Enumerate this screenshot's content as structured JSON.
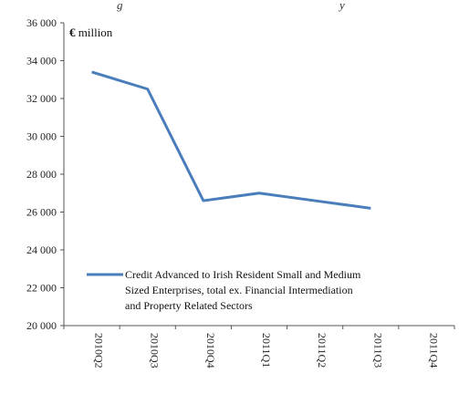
{
  "header_text": "g",
  "header_text_2": "y",
  "chart_data": {
    "type": "line",
    "unit_label": "€ million",
    "categories": [
      "2010Q2",
      "2010Q3",
      "2010Q4",
      "2011Q1",
      "2011Q2",
      "2011Q3",
      "2011Q4"
    ],
    "series": [
      {
        "name": "Credit Advanced to Irish Resident Small and Medium Sized Enterprises, total ex. Financial Intermediation and Property Related Sectors",
        "values": [
          33400,
          32500,
          26600,
          27000,
          26600,
          26200,
          null
        ],
        "color": "#4a7ebb"
      }
    ],
    "ylim": [
      20000,
      36000
    ],
    "yticks": [
      20000,
      22000,
      24000,
      26000,
      28000,
      30000,
      32000,
      34000,
      36000
    ],
    "ytick_labels": [
      "20 000",
      "22 000",
      "24 000",
      "26 000",
      "28 000",
      "30 000",
      "32 000",
      "34 000",
      "36 000"
    ],
    "legend_lines": [
      "Credit Advanced to Irish Resident Small and Medium",
      "Sized Enterprises, total ex. Financial Intermediation",
      "and Property Related Sectors"
    ],
    "legend_position": "bottom-left",
    "grid": false
  }
}
